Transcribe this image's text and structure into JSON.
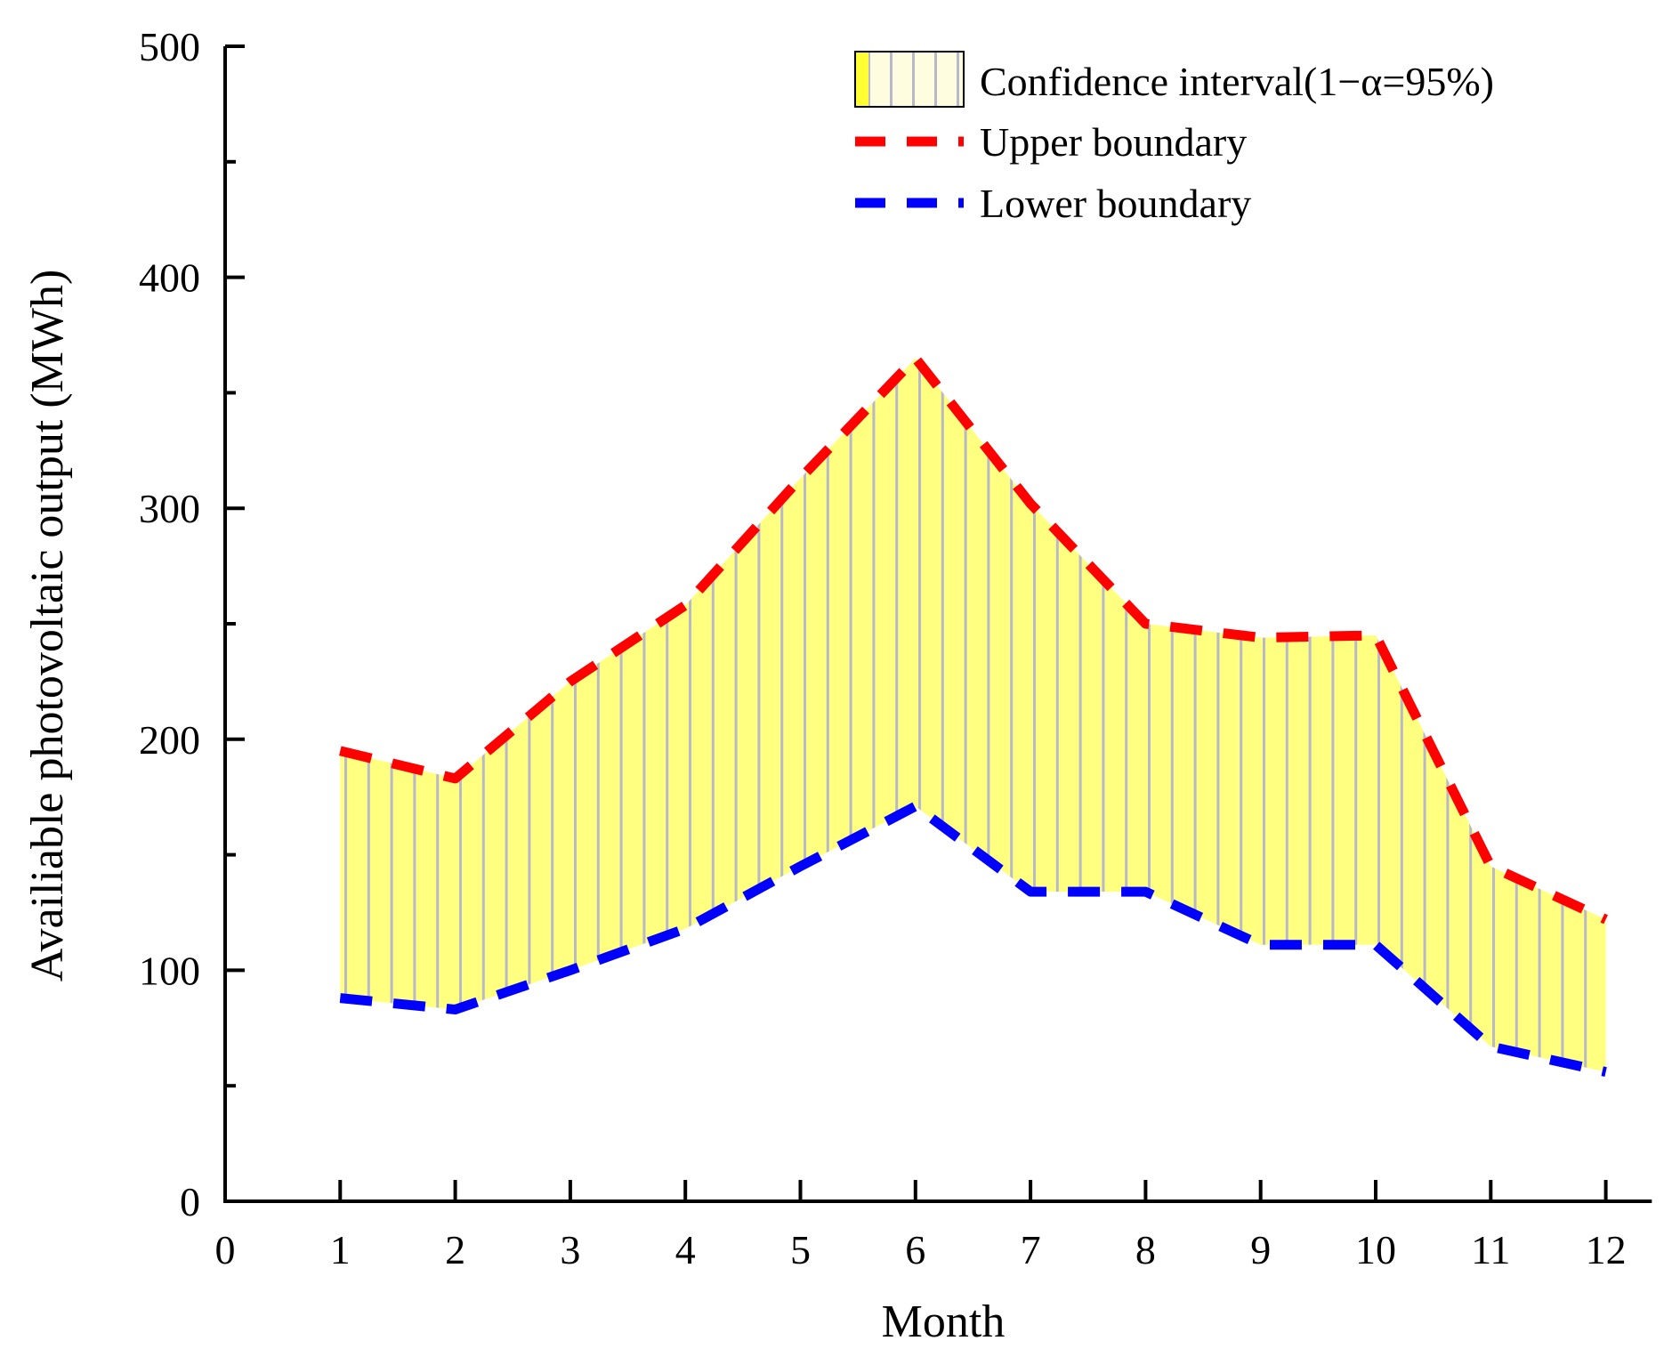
{
  "chart_data": {
    "type": "area",
    "title": "",
    "xlabel": "Month",
    "ylabel": "Availiable photovoltaic output (MWh)",
    "xlim": [
      0,
      12.4
    ],
    "ylim": [
      0,
      500
    ],
    "x_ticks": [
      0,
      1,
      2,
      3,
      4,
      5,
      6,
      7,
      8,
      9,
      10,
      11,
      12
    ],
    "y_ticks": [
      0,
      100,
      200,
      300,
      400,
      500
    ],
    "grid": false,
    "legend_position": "top-right",
    "x": [
      1,
      2,
      3,
      4,
      5,
      6,
      7,
      8,
      9,
      10,
      11,
      12
    ],
    "series": [
      {
        "name": "Confidence interval(1−α=95%)",
        "kind": "band",
        "fill_color": "#ffff80",
        "hatch_color": "#b8b8c8"
      },
      {
        "name": "Upper boundary",
        "kind": "line",
        "color": "#ff0000",
        "values": [
          195,
          183,
          225,
          258,
          313,
          365,
          302,
          250,
          244,
          245,
          145,
          122
        ]
      },
      {
        "name": "Lower boundary",
        "kind": "line",
        "color": "#0000ff",
        "values": [
          88,
          83,
          100,
          118,
          145,
          171,
          134,
          134,
          111,
          111,
          67,
          56
        ]
      }
    ]
  }
}
